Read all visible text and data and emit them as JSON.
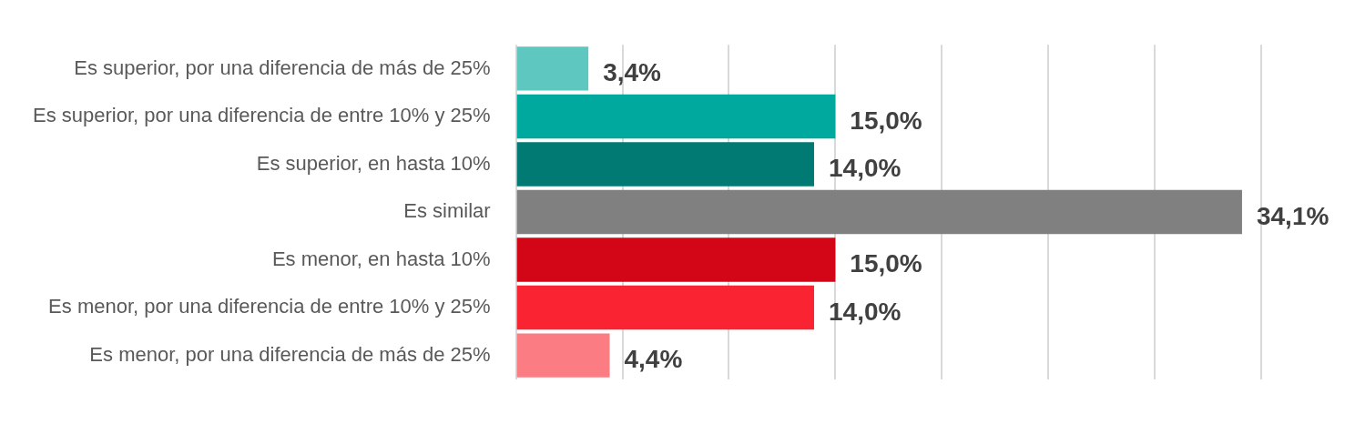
{
  "chart_data": {
    "type": "bar",
    "orientation": "horizontal",
    "categories": [
      "Es superior, por una diferencia de más de 25%",
      "Es superior, por una diferencia de entre 10% y 25%",
      "Es superior, en hasta 10%",
      "Es similar",
      "Es menor, en hasta 10%",
      "Es menor, por una diferencia de entre 10% y 25%",
      "Es menor, por una diferencia de más de 25%"
    ],
    "values": [
      3.4,
      15.0,
      14.0,
      34.1,
      15.0,
      14.0,
      4.4
    ],
    "colors": [
      "#5ec8c0",
      "#00a99d",
      "#007a73",
      "#808080",
      "#d20616",
      "#fa2331",
      "#fc7c84"
    ],
    "value_labels": [
      "3,4%",
      "15,0%",
      "14,0%",
      "34,1%",
      "15,0%",
      "14,0%",
      "4,4%"
    ],
    "xlim": [
      0,
      35
    ],
    "xticks": [
      {
        "value": 0,
        "label": null
      },
      {
        "value": 5,
        "label": null
      },
      {
        "value": 10,
        "label": null
      },
      {
        "value": 15,
        "label": null
      },
      {
        "value": 20,
        "label": null
      },
      {
        "value": 25,
        "label": null
      },
      {
        "value": 30,
        "label": null
      },
      {
        "value": 35,
        "label": null
      }
    ],
    "grid": "x",
    "legend": false
  }
}
